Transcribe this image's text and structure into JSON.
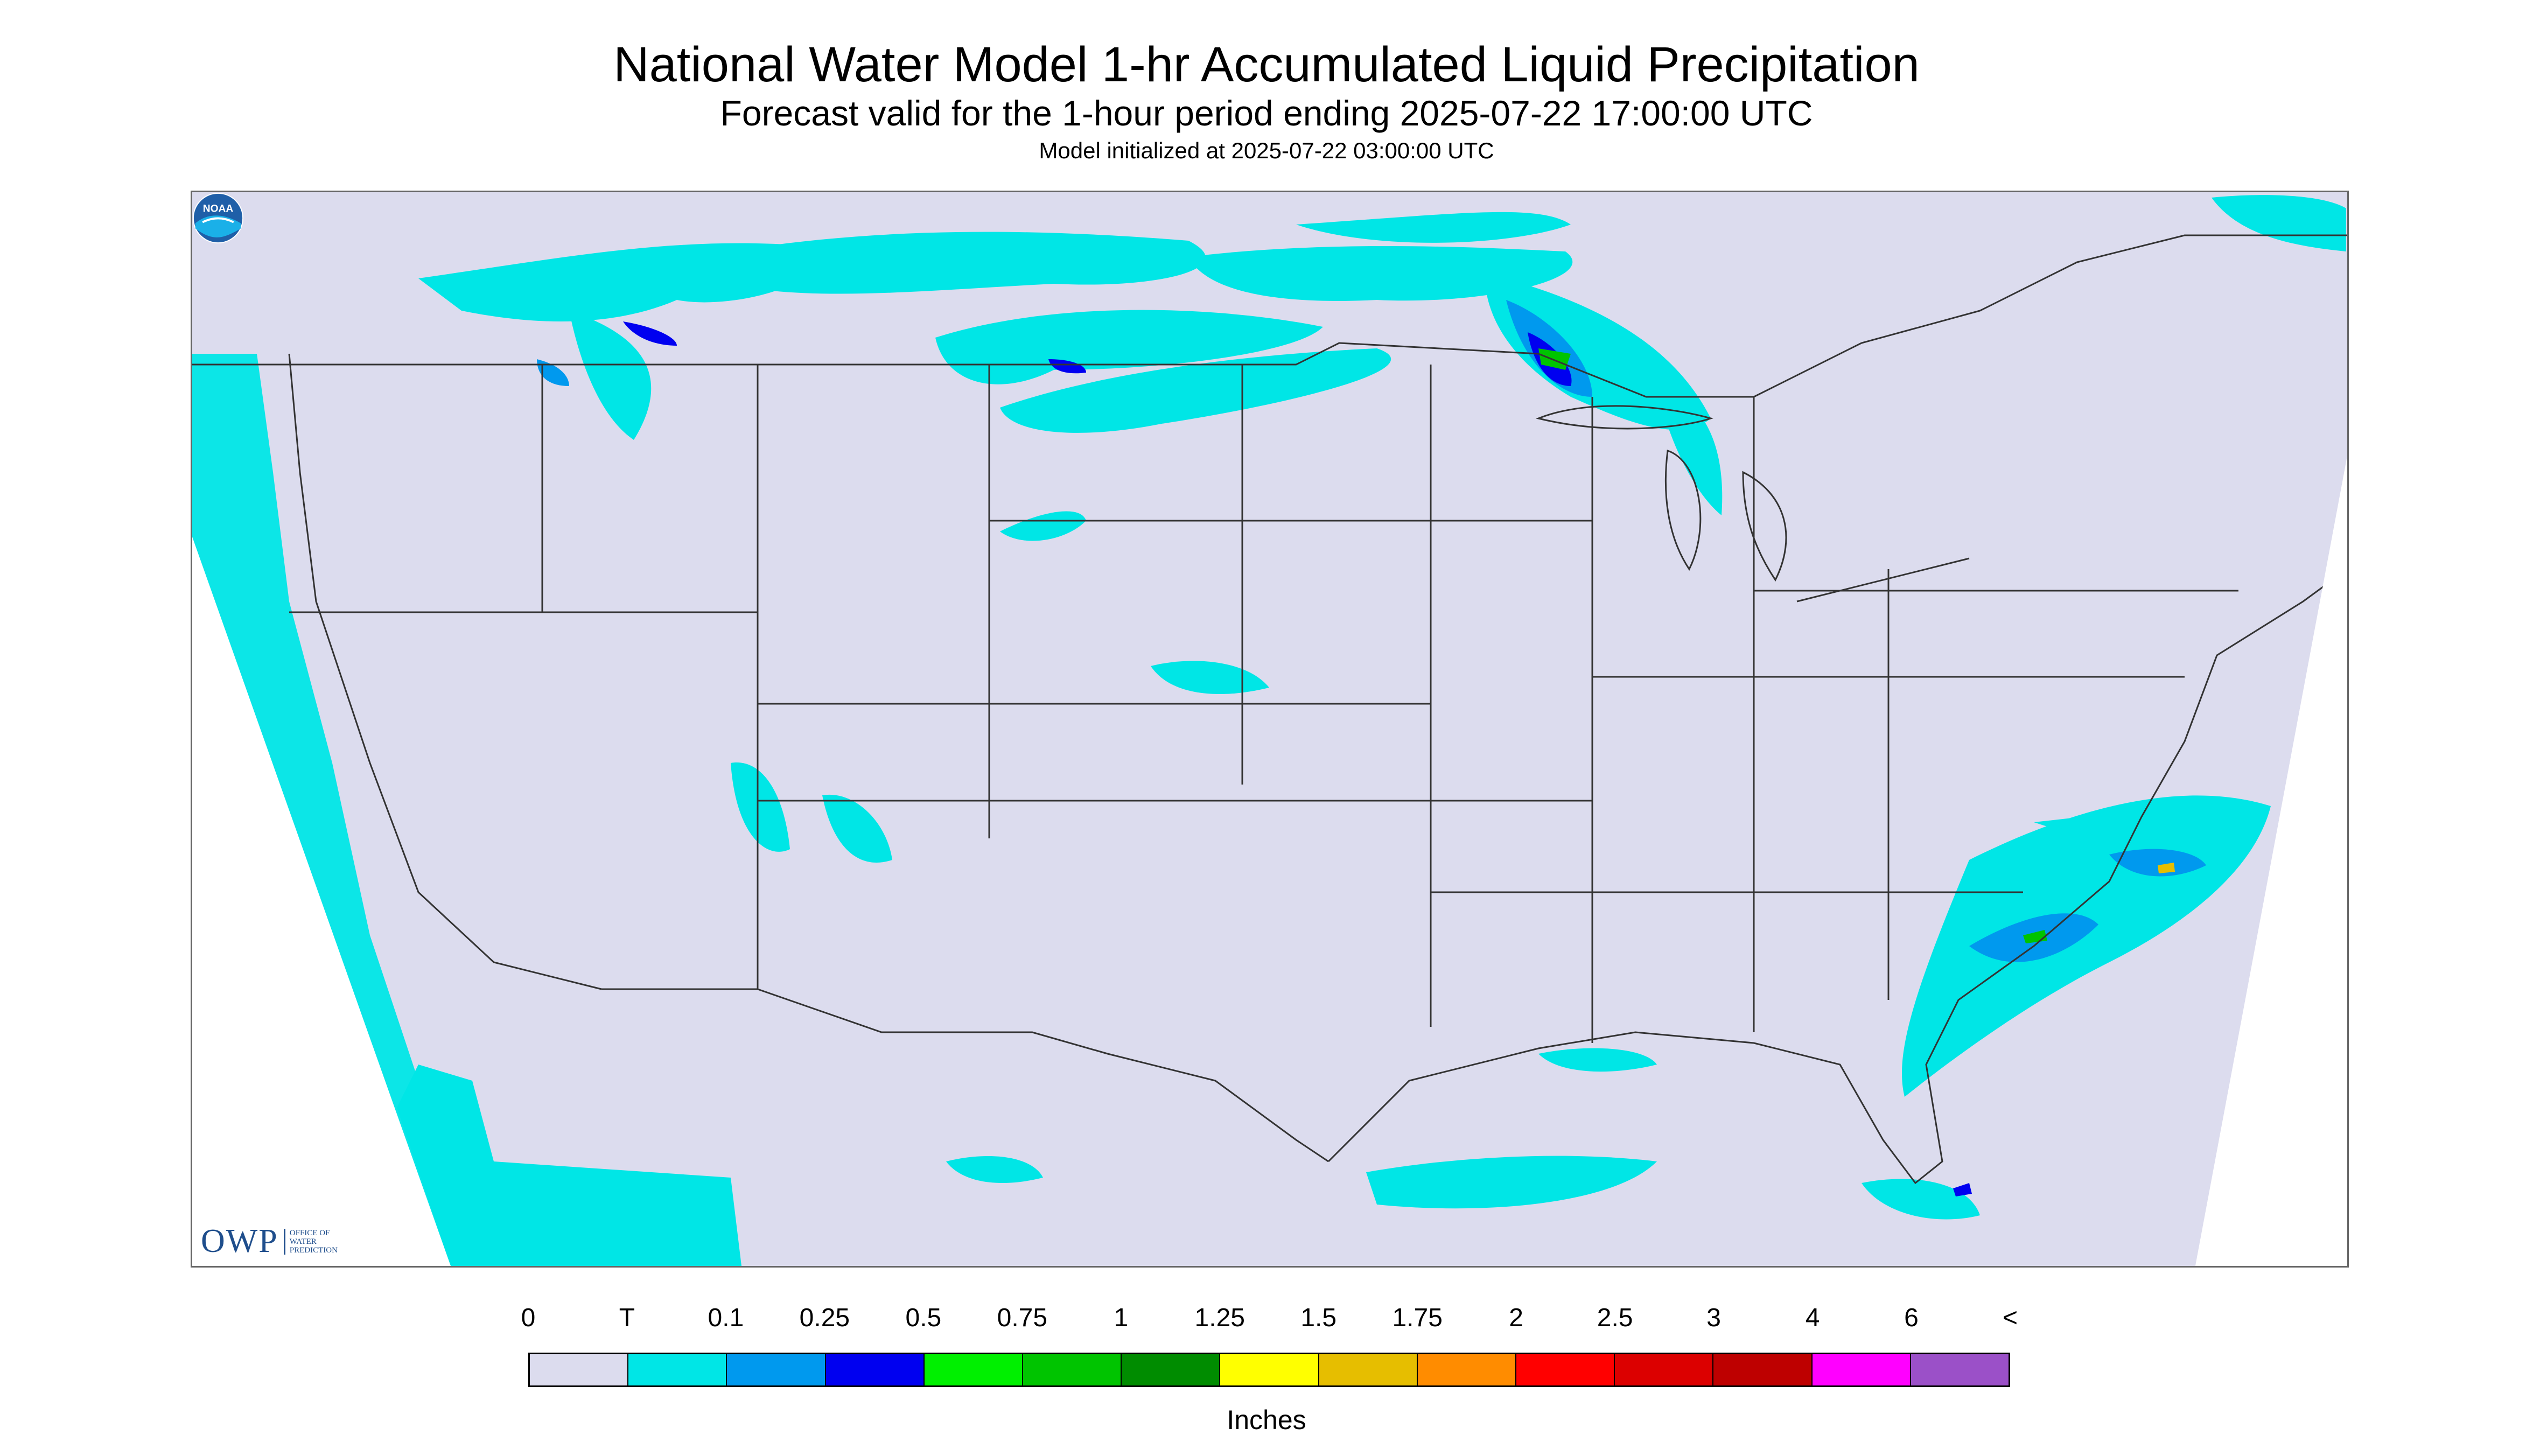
{
  "title": "National Water Model 1-hr Accumulated Liquid Precipitation",
  "subtitle": "Forecast valid for the 1-hour period ending 2025-07-22 17:00:00 UTC",
  "init_text": "Model initialized at 2025-07-22 03:00:00 UTC",
  "logos": {
    "owp_mark": "OWP",
    "owp_sub": [
      "OFFICE OF",
      "WATER",
      "PREDICTION"
    ],
    "noaa_text": "NOAA"
  },
  "colorbar": {
    "units_label": "Inches",
    "tick_labels": [
      "0",
      "T",
      "0.1",
      "0.25",
      "0.5",
      "0.75",
      "1",
      "1.25",
      "1.5",
      "1.75",
      "2",
      "2.5",
      "3",
      "4",
      "6",
      "<"
    ],
    "colors": [
      "#dcdcee",
      "#00e6e6",
      "#0099ee",
      "#0000f0",
      "#00f000",
      "#00c400",
      "#008c00",
      "#ffff00",
      "#e6be00",
      "#ff8c00",
      "#ff0000",
      "#dc0000",
      "#be0000",
      "#ff00ff",
      "#9b50c8"
    ]
  },
  "map_colors": {
    "background_land": "#dcdcee",
    "outside_domain": "#ffffff",
    "boundaries": "#333333",
    "trace": "#00e6e6"
  }
}
